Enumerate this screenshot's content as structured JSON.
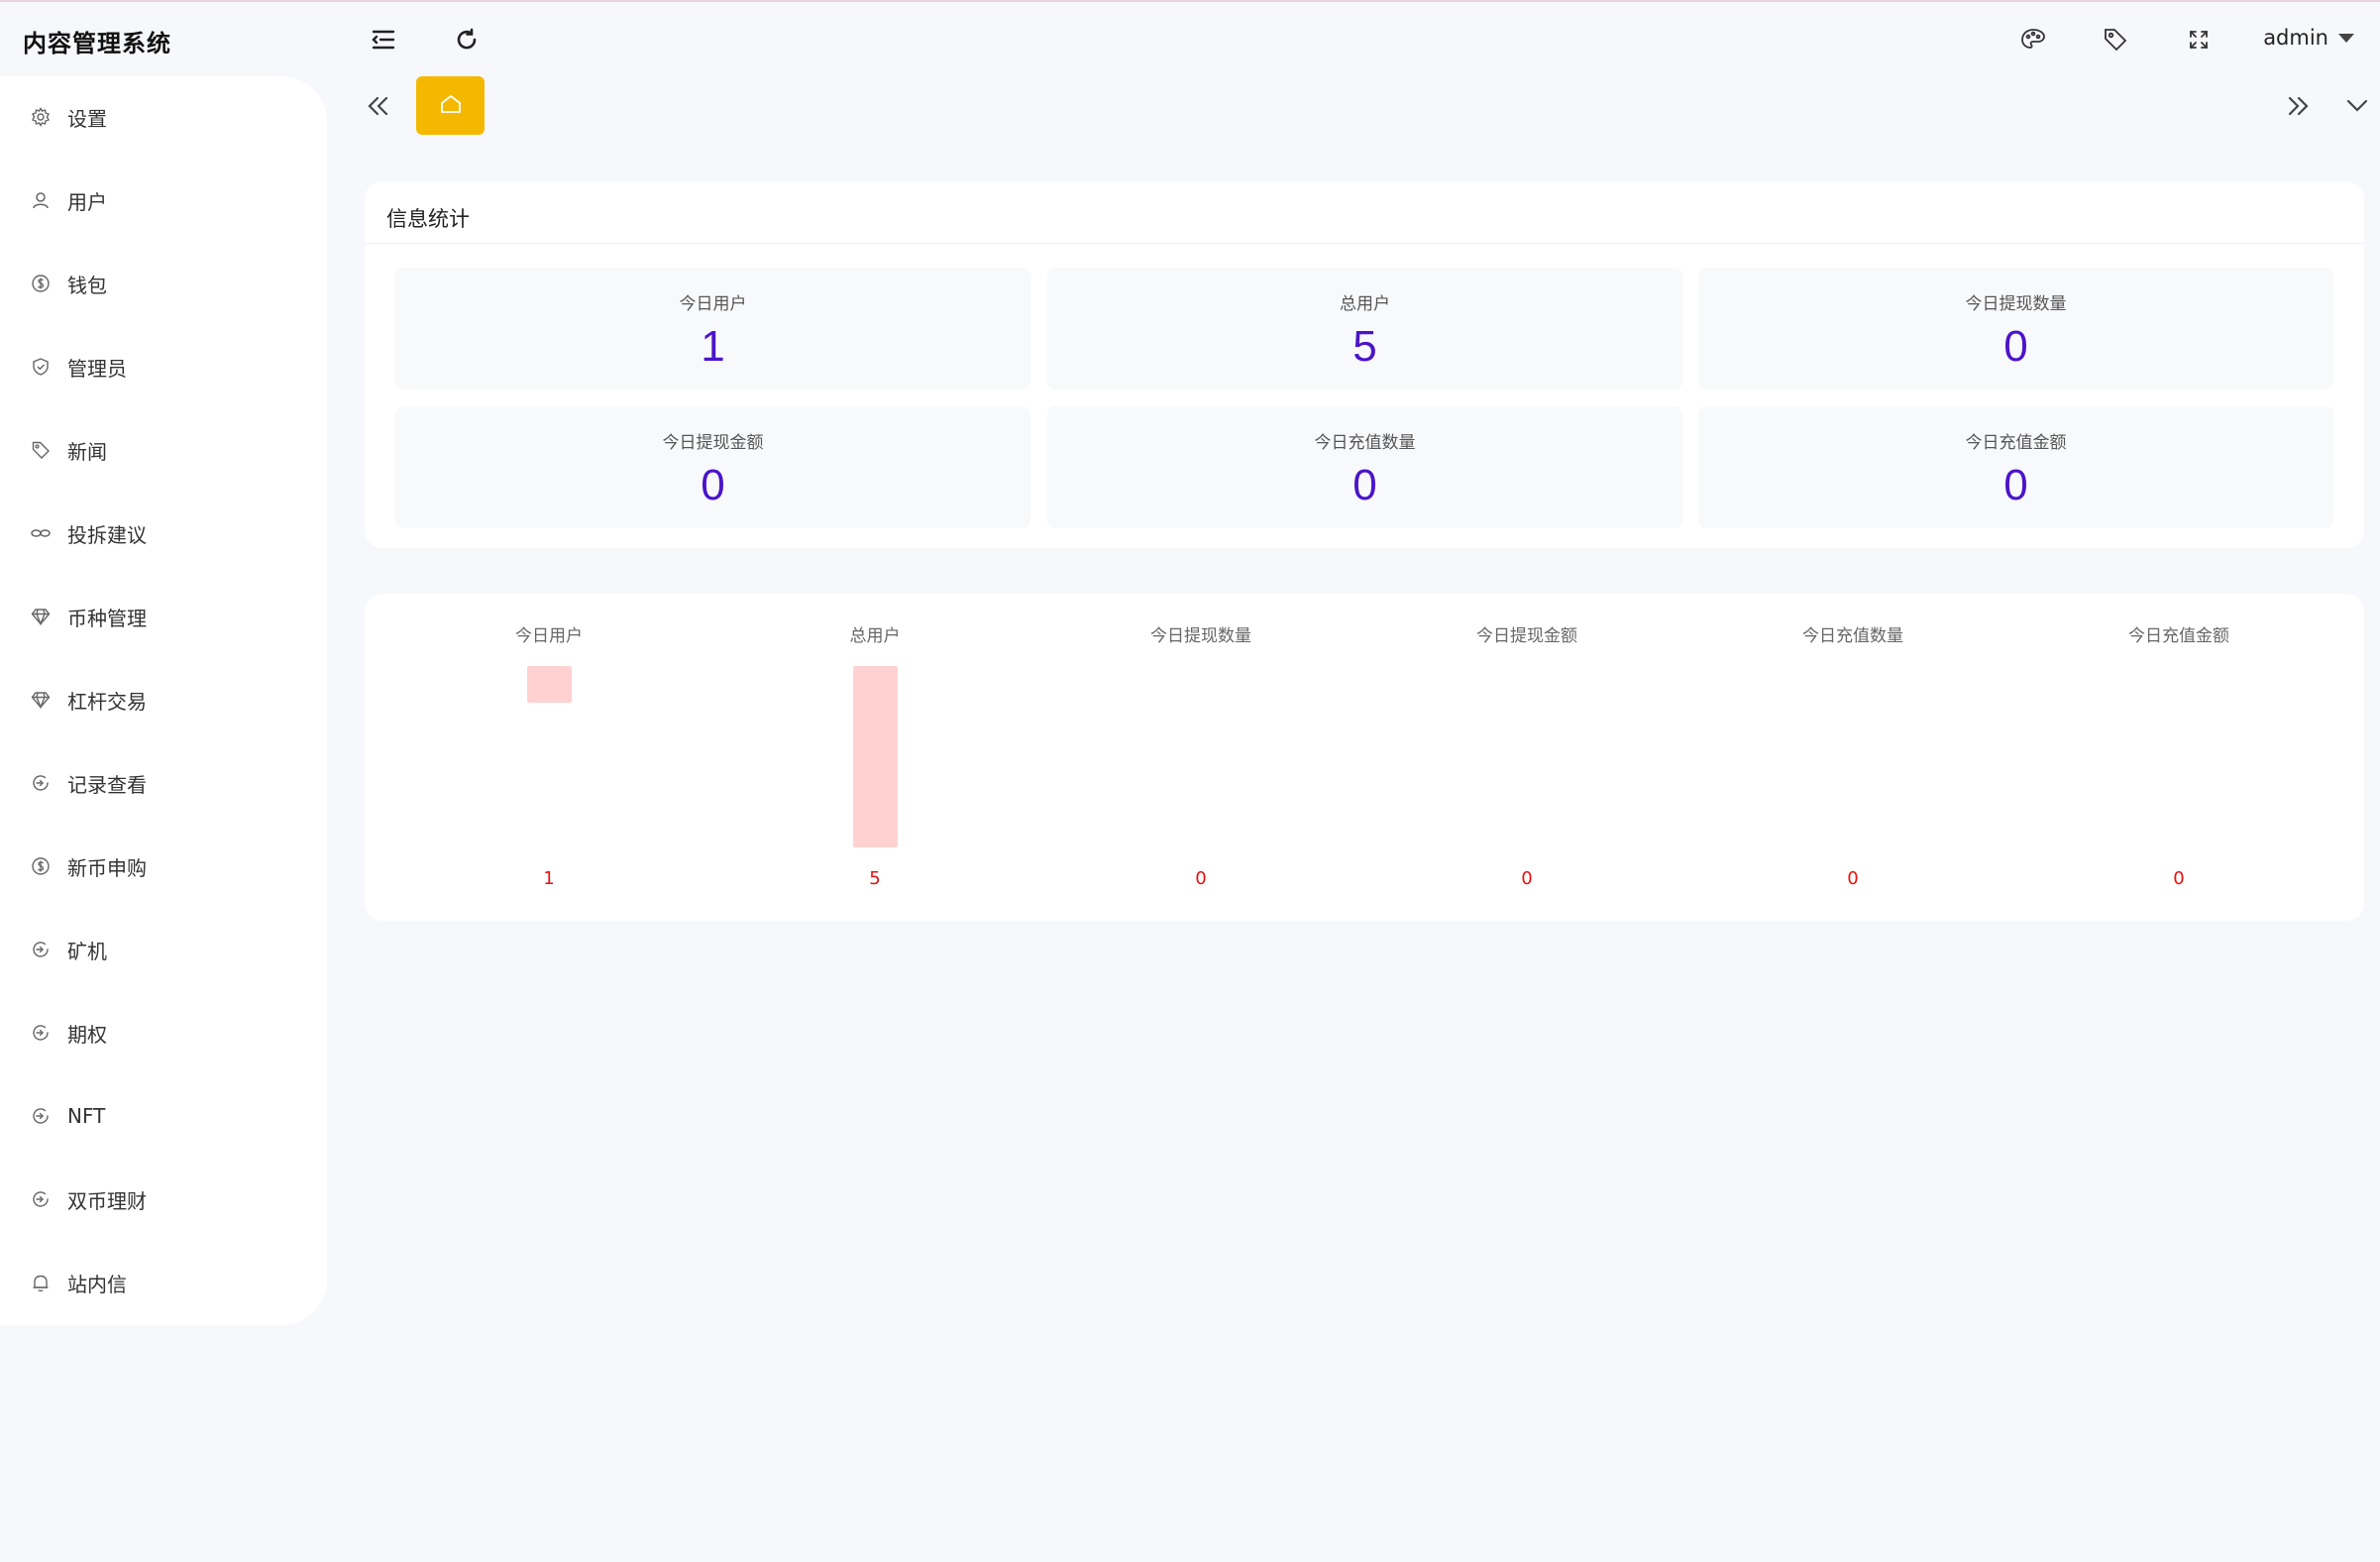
{
  "app": {
    "title": "内容管理系统"
  },
  "header": {
    "user": "admin",
    "icons": [
      "menu-fold-icon",
      "refresh-icon",
      "palette-icon",
      "tag-icon",
      "fullscreen-icon"
    ]
  },
  "sidebar": {
    "items": [
      {
        "label": "设置",
        "icon": "gear-icon"
      },
      {
        "label": "用户",
        "icon": "user-icon"
      },
      {
        "label": "钱包",
        "icon": "coin-icon"
      },
      {
        "label": "管理员",
        "icon": "shield-icon"
      },
      {
        "label": "新闻",
        "icon": "tag-icon"
      },
      {
        "label": "投拆建议",
        "icon": "link-icon"
      },
      {
        "label": "币种管理",
        "icon": "diamond-icon"
      },
      {
        "label": "杠杆交易",
        "icon": "diamond-icon"
      },
      {
        "label": "记录查看",
        "icon": "circle-arrow-icon"
      },
      {
        "label": "新币申购",
        "icon": "coin-icon"
      },
      {
        "label": "矿机",
        "icon": "circle-arrow-icon"
      },
      {
        "label": "期权",
        "icon": "circle-arrow-icon"
      },
      {
        "label": "NFT",
        "icon": "circle-arrow-icon"
      },
      {
        "label": "双币理财",
        "icon": "circle-arrow-icon"
      },
      {
        "label": "站内信",
        "icon": "bell-icon"
      }
    ]
  },
  "tabs": {
    "home_icon": "home-icon"
  },
  "stats": {
    "title": "信息统计",
    "items": [
      {
        "label": "今日用户",
        "value": "1"
      },
      {
        "label": "总用户",
        "value": "5"
      },
      {
        "label": "今日提现数量",
        "value": "0"
      },
      {
        "label": "今日提现金额",
        "value": "0"
      },
      {
        "label": "今日充值数量",
        "value": "0"
      },
      {
        "label": "今日充值金额",
        "value": "0"
      }
    ],
    "value_color": "#4b14c9"
  },
  "chart_data": {
    "type": "bar",
    "categories": [
      "今日用户",
      "总用户",
      "今日提现数量",
      "今日提现金额",
      "今日充值数量",
      "今日充值金额"
    ],
    "values": [
      1,
      5,
      0,
      0,
      0,
      0
    ],
    "data_labels": [
      "1",
      "5",
      "0",
      "0",
      "0",
      "0"
    ],
    "title": "",
    "xlabel": "",
    "ylabel": "",
    "ylim": [
      0,
      5
    ],
    "grid": false,
    "bar_color": "#ffd1d1",
    "label_color": "#e81010"
  }
}
